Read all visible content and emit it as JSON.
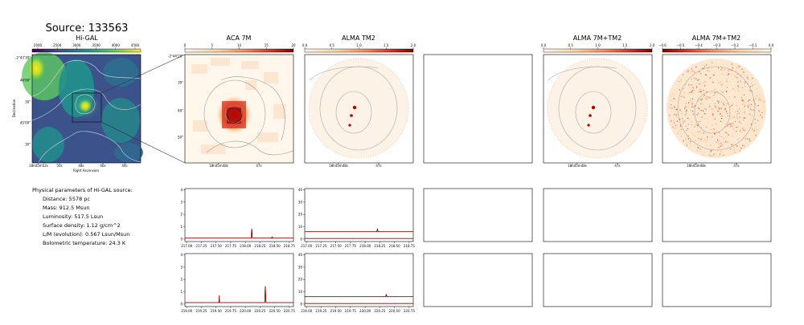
{
  "source_title": "Source: 133563",
  "chart_data": [
    {
      "type": "heatmap",
      "title": "Hi-GAL",
      "colormap": "viridis",
      "colorbar_ticks": [
        "2000",
        "2500",
        "3000",
        "3500",
        "4000",
        "4500"
      ],
      "xlabel": "Right Ascension",
      "ylabel": "Declination",
      "x_ticks": [
        "18h45m52s",
        "50s",
        "48s",
        "46s",
        "44s"
      ],
      "y_ticks": [
        "-2°43'30\"",
        "44'00\"",
        "30\"",
        "45'00\"",
        "30\""
      ]
    },
    {
      "type": "heatmap",
      "title": "ACA 7M",
      "colormap": "OrRd",
      "colorbar_ticks": [
        "0",
        "5",
        "10",
        "15",
        "20"
      ],
      "x_ticks": [
        "18h45m48s",
        "47s"
      ],
      "y_ticks": [
        "-2°44'20\"",
        "30\"",
        "40\"",
        "50\""
      ]
    },
    {
      "type": "heatmap",
      "title": "ALMA TM2",
      "colormap": "OrRd",
      "colorbar_ticks": [
        "0.0",
        "0.5",
        "1.0",
        "1.5",
        "2.0"
      ],
      "x_ticks": [
        "18h45m48s",
        "47s"
      ]
    },
    {
      "type": "heatmap",
      "title": "ALMA 7M+TM2",
      "colormap": "OrRd",
      "colorbar_ticks": [
        "0.0",
        "0.5",
        "1.0",
        "1.5",
        "2.0"
      ],
      "x_ticks": [
        "18h45m48s",
        "47s"
      ]
    },
    {
      "type": "heatmap",
      "title": "ALMA 7M+TM2",
      "colormap": "OrRd",
      "colorbar_ticks": [
        "−0.6",
        "−0.5",
        "−0.4",
        "−0.3",
        "−0.2",
        "−0.1",
        "0.0"
      ],
      "x_ticks": [
        "18h45m48s",
        "47s"
      ]
    },
    {
      "type": "line",
      "panel": "ACA 7M spectrum, row 1",
      "x_ticks": [
        "217.00",
        "217.25",
        "217.50",
        "217.75",
        "218.00",
        "218.25",
        "218.50",
        "218.75"
      ],
      "y_ticks": [
        "0",
        "1",
        "2",
        "3",
        "4"
      ],
      "xlim": [
        216.97,
        218.82
      ],
      "ylim": [
        -0.2,
        4.1
      ],
      "series": [
        {
          "x": [
            216.97,
            218.1,
            218.105,
            218.11,
            218.115,
            218.12,
            218.45,
            218.455,
            218.46,
            218.82
          ],
          "y": [
            0.08,
            0.08,
            0.55,
            0.85,
            0.5,
            0.08,
            0.08,
            0.2,
            0.08,
            0.08
          ]
        }
      ]
    },
    {
      "type": "line",
      "panel": "ALMA TM2 spectrum, row 1",
      "x_ticks": [
        "217.00",
        "217.25",
        "217.50",
        "217.75",
        "218.00",
        "218.25",
        "218.50",
        "218.75"
      ],
      "y_ticks": [
        "0",
        "10",
        "20",
        "30",
        "40"
      ],
      "xlim": [
        216.97,
        218.82
      ],
      "ylim": [
        -2,
        41
      ],
      "series": [
        {
          "x": [
            216.97,
            218.2,
            218.21,
            218.22,
            218.82
          ],
          "y": [
            6,
            6,
            8.5,
            6,
            6
          ]
        },
        {
          "x": [
            216.97,
            218.82
          ],
          "y": [
            0.5,
            0.5
          ]
        }
      ]
    },
    {
      "type": "line",
      "panel": "ACA 7M spectrum, row 2",
      "x_ticks": [
        "219.00",
        "219.25",
        "219.50",
        "219.75",
        "220.00",
        "220.25",
        "220.50",
        "220.75"
      ],
      "y_ticks": [
        "0",
        "1",
        "2",
        "3",
        "4"
      ],
      "xlim": [
        218.97,
        220.82
      ],
      "ylim": [
        -0.2,
        4.1
      ],
      "series": [
        {
          "x": [
            218.97,
            219.55,
            219.555,
            219.56,
            220.33,
            220.335,
            220.34,
            220.345,
            220.35,
            220.82
          ],
          "y": [
            0.12,
            0.12,
            0.7,
            0.12,
            0.12,
            0.9,
            1.45,
            0.8,
            0.12,
            0.12
          ]
        }
      ]
    },
    {
      "type": "line",
      "panel": "ALMA TM2 spectrum, row 2",
      "x_ticks": [
        "219.00",
        "219.25",
        "219.50",
        "219.75",
        "220.00",
        "220.25",
        "220.50",
        "220.75"
      ],
      "y_ticks": [
        "0",
        "10",
        "20",
        "30",
        "40"
      ],
      "xlim": [
        218.97,
        220.82
      ],
      "ylim": [
        -2,
        41
      ],
      "series": [
        {
          "x": [
            218.97,
            220.35,
            220.36,
            220.37,
            220.82
          ],
          "y": [
            6,
            6,
            8,
            6,
            6
          ]
        },
        {
          "x": [
            218.97,
            220.82
          ],
          "y": [
            0.5,
            0.5
          ]
        }
      ]
    }
  ],
  "params": {
    "header": "Physical parameters of Hi-GAL source:",
    "lines": [
      "Distance: 5578 pc",
      "Mass: 912.5 Msun",
      "Luminosity: 517.5 Lsun",
      "Surface density: 1.12 g/cm^2",
      "L/M (evolution): 0.567 Lsun/Msun",
      "Bolometric temperature: 24.3 K"
    ]
  },
  "colors": {
    "viridis": [
      "#440154",
      "#3b528b",
      "#21918c",
      "#5ec962",
      "#fde725"
    ],
    "orrd": [
      "#fff7ec",
      "#fdd49e",
      "#fc8d59",
      "#d7301f",
      "#7f0000"
    ],
    "spectrum_line": "#8b0000"
  }
}
